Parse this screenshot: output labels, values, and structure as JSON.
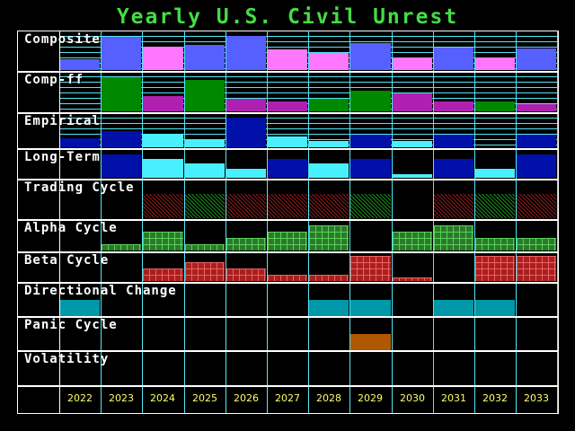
{
  "title": "Yearly U.S. Civil Unrest",
  "years": [
    "2022",
    "2023",
    "2024",
    "2025",
    "2026",
    "2027",
    "2028",
    "2029",
    "2030",
    "2031",
    "2032",
    "2033"
  ],
  "rows": [
    {
      "label": "Composite"
    },
    {
      "label": "Comp-ff"
    },
    {
      "label": "Empirical"
    },
    {
      "label": "Long-Term"
    },
    {
      "label": "Trading Cycle"
    },
    {
      "label": "Alpha Cycle"
    },
    {
      "label": "Beta Cycle"
    },
    {
      "label": "Directional Change"
    },
    {
      "label": "Panic Cycle"
    },
    {
      "label": "Volatility"
    }
  ],
  "colors": {
    "title": "#44dd44",
    "grid": "#55e5f5",
    "composite_high": "#5560ff",
    "composite_low": "#ff77ff",
    "compff_high": "#008800",
    "compff_low": "#b020b0",
    "empirical_high": "#0010a8",
    "empirical_low": "#48f0ff",
    "directional": "#0098a8",
    "panic": "#b05800",
    "year_labels": "#ffff66"
  },
  "chart_data": {
    "type": "bar",
    "title": "Yearly U.S. Civil Unrest",
    "categories": [
      "2022",
      "2023",
      "2024",
      "2025",
      "2026",
      "2027",
      "2028",
      "2029",
      "2030",
      "2031",
      "2032",
      "2033"
    ],
    "series": [
      {
        "name": "Composite",
        "values": [
          12,
          37,
          26,
          28,
          38,
          23,
          19,
          30,
          14,
          25,
          14,
          24
        ],
        "colors": [
          "blue",
          "blue",
          "pink",
          "blue",
          "blue",
          "pink",
          "pink",
          "blue",
          "pink",
          "blue",
          "pink",
          "blue"
        ]
      },
      {
        "name": "Comp-ff",
        "values": [
          0,
          38,
          17,
          35,
          14,
          11,
          14,
          23,
          20,
          11,
          11,
          8
        ],
        "colors": [
          "",
          "green",
          "purple",
          "green",
          "purple",
          "purple",
          "green",
          "green",
          "purple",
          "purple",
          "green",
          "purple"
        ]
      },
      {
        "name": "Empirical",
        "values": [
          10,
          18,
          15,
          9,
          33,
          12,
          7,
          14,
          7,
          14,
          0,
          14
        ],
        "colors": [
          "navy",
          "navy",
          "cyan",
          "cyan",
          "navy",
          "cyan",
          "cyan",
          "navy",
          "cyan",
          "navy",
          "",
          "navy"
        ]
      },
      {
        "name": "Long-Term",
        "values": [
          0,
          26,
          21,
          16,
          10,
          21,
          16,
          21,
          4,
          21,
          10,
          26
        ],
        "colors": [
          "",
          "navy",
          "cyan",
          "cyan",
          "cyan",
          "navy",
          "cyan",
          "navy",
          "cyan",
          "navy",
          "cyan",
          "navy"
        ]
      },
      {
        "name": "Trading Cycle",
        "values": [
          0,
          0,
          1,
          1,
          1,
          1,
          1,
          1,
          0,
          1,
          1,
          1
        ],
        "colors": [
          "",
          "",
          "red",
          "green",
          "red",
          "red",
          "red",
          "green",
          "",
          "red",
          "green",
          "red"
        ]
      },
      {
        "name": "Alpha Cycle",
        "values": [
          0,
          1,
          3,
          1,
          2,
          3,
          4,
          0,
          3,
          4,
          2,
          2
        ]
      },
      {
        "name": "Beta Cycle",
        "values": [
          0,
          0,
          2,
          3,
          2,
          1,
          1,
          4,
          0.5,
          0,
          4,
          4
        ]
      },
      {
        "name": "Directional Change",
        "values": [
          1,
          0,
          0,
          0,
          0,
          0,
          1,
          1,
          0,
          1,
          1,
          0
        ]
      },
      {
        "name": "Panic Cycle",
        "values": [
          0,
          0,
          0,
          0,
          0,
          0,
          0,
          1,
          0,
          0,
          0,
          0
        ]
      },
      {
        "name": "Volatility",
        "values": [
          0,
          0,
          0,
          0,
          0,
          0,
          0,
          0,
          0,
          0,
          0,
          0
        ]
      }
    ],
    "xlabel": "",
    "ylabel": "",
    "grid": true,
    "legend": "row labels on left"
  }
}
